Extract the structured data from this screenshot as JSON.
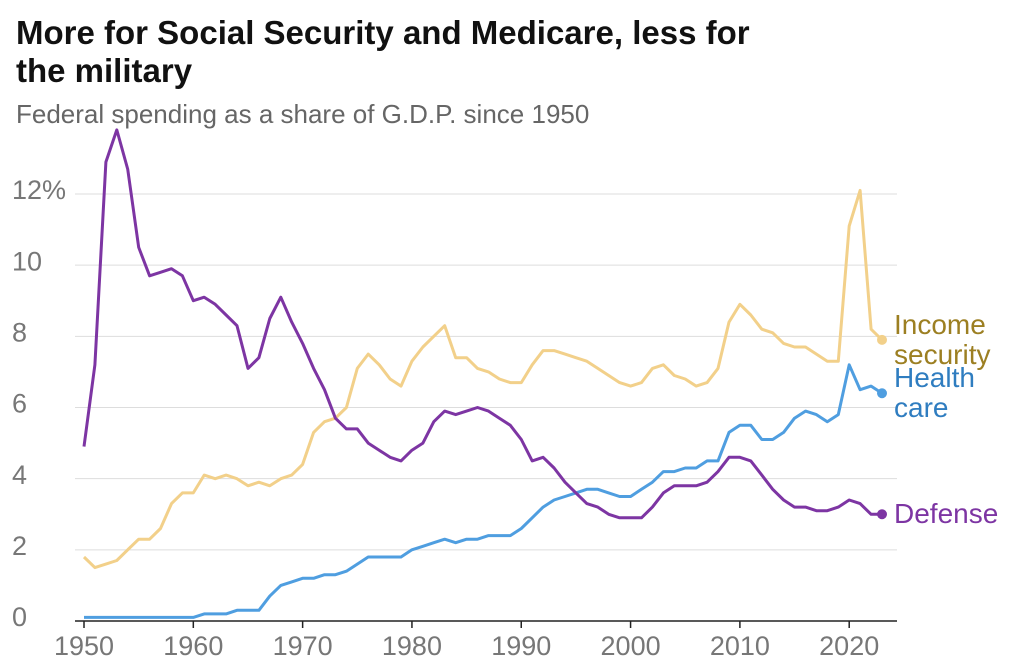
{
  "chart_data": {
    "type": "line",
    "title": "More for Social Security and Medicare, less for the military",
    "subtitle": "Federal spending as a share of G.D.P. since 1950",
    "x": [
      1950,
      1951,
      1952,
      1953,
      1954,
      1955,
      1956,
      1957,
      1958,
      1959,
      1960,
      1961,
      1962,
      1963,
      1964,
      1965,
      1966,
      1967,
      1968,
      1969,
      1970,
      1971,
      1972,
      1973,
      1974,
      1975,
      1976,
      1977,
      1978,
      1979,
      1980,
      1981,
      1982,
      1983,
      1984,
      1985,
      1986,
      1987,
      1988,
      1989,
      1990,
      1991,
      1992,
      1993,
      1994,
      1995,
      1996,
      1997,
      1998,
      1999,
      2000,
      2001,
      2002,
      2003,
      2004,
      2005,
      2006,
      2007,
      2008,
      2009,
      2010,
      2011,
      2012,
      2013,
      2014,
      2015,
      2016,
      2017,
      2018,
      2019,
      2020,
      2021,
      2022,
      2023
    ],
    "series": [
      {
        "name": "Income security",
        "color": "#f2d08a",
        "label_color": "#9c7f22",
        "values": [
          1.8,
          1.5,
          1.6,
          1.7,
          2.0,
          2.3,
          2.3,
          2.6,
          3.3,
          3.6,
          3.6,
          4.1,
          4.0,
          4.1,
          4.0,
          3.8,
          3.9,
          3.8,
          4.0,
          4.1,
          4.4,
          5.3,
          5.6,
          5.7,
          6.0,
          7.1,
          7.5,
          7.2,
          6.8,
          6.6,
          7.3,
          7.7,
          8.0,
          8.3,
          7.4,
          7.4,
          7.1,
          7.0,
          6.8,
          6.7,
          6.7,
          7.2,
          7.6,
          7.6,
          7.5,
          7.4,
          7.3,
          7.1,
          6.9,
          6.7,
          6.6,
          6.7,
          7.1,
          7.2,
          6.9,
          6.8,
          6.6,
          6.7,
          7.1,
          8.4,
          8.9,
          8.6,
          8.2,
          8.1,
          7.8,
          7.7,
          7.7,
          7.5,
          7.3,
          7.3,
          11.1,
          12.1,
          8.2,
          7.9
        ]
      },
      {
        "name": "Health care",
        "color": "#4f9ee0",
        "label_color": "#2f7dc0",
        "values": [
          0.1,
          0.1,
          0.1,
          0.1,
          0.1,
          0.1,
          0.1,
          0.1,
          0.1,
          0.1,
          0.1,
          0.2,
          0.2,
          0.2,
          0.3,
          0.3,
          0.3,
          0.7,
          1.0,
          1.1,
          1.2,
          1.2,
          1.3,
          1.3,
          1.4,
          1.6,
          1.8,
          1.8,
          1.8,
          1.8,
          2.0,
          2.1,
          2.2,
          2.3,
          2.2,
          2.3,
          2.3,
          2.4,
          2.4,
          2.4,
          2.6,
          2.9,
          3.2,
          3.4,
          3.5,
          3.6,
          3.7,
          3.7,
          3.6,
          3.5,
          3.5,
          3.7,
          3.9,
          4.2,
          4.2,
          4.3,
          4.3,
          4.5,
          4.5,
          5.3,
          5.5,
          5.5,
          5.1,
          5.1,
          5.3,
          5.7,
          5.9,
          5.8,
          5.6,
          5.8,
          7.2,
          6.5,
          6.6,
          6.4
        ]
      },
      {
        "name": "Defense",
        "color": "#7d35a3",
        "label_color": "#7d35a3",
        "values": [
          4.9,
          7.2,
          12.9,
          13.8,
          12.7,
          10.5,
          9.7,
          9.8,
          9.9,
          9.7,
          9.0,
          9.1,
          8.9,
          8.6,
          8.3,
          7.1,
          7.4,
          8.5,
          9.1,
          8.4,
          7.8,
          7.1,
          6.5,
          5.7,
          5.4,
          5.4,
          5.0,
          4.8,
          4.6,
          4.5,
          4.8,
          5.0,
          5.6,
          5.9,
          5.8,
          5.9,
          6.0,
          5.9,
          5.7,
          5.5,
          5.1,
          4.5,
          4.6,
          4.3,
          3.9,
          3.6,
          3.3,
          3.2,
          3.0,
          2.9,
          2.9,
          2.9,
          3.2,
          3.6,
          3.8,
          3.8,
          3.8,
          3.9,
          4.2,
          4.6,
          4.6,
          4.5,
          4.1,
          3.7,
          3.4,
          3.2,
          3.2,
          3.1,
          3.1,
          3.2,
          3.4,
          3.3,
          3.0,
          3.0
        ]
      }
    ],
    "xlim": [
      1950,
      2023
    ],
    "xticks": [
      1950,
      1960,
      1970,
      1980,
      1990,
      2000,
      2010,
      2020
    ],
    "ylim": [
      0,
      14
    ],
    "yticks": [
      0,
      2,
      4,
      6,
      8,
      10,
      {
        "value": 12,
        "label": "12%"
      }
    ],
    "grid": true
  }
}
